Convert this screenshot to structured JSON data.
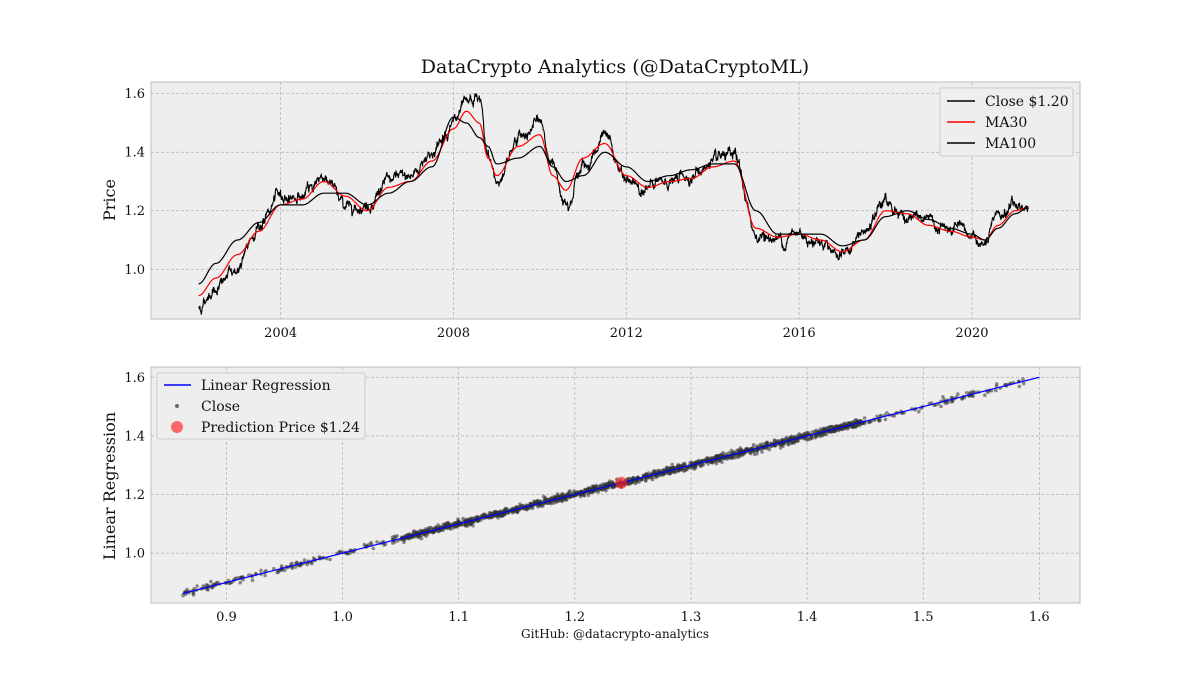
{
  "figure": {
    "title": "DataCrypto Analytics (@DataCryptoML)",
    "footer": "GitHub: @datacrypto-analytics"
  },
  "colors": {
    "panel_bg": "#eeeeee",
    "grid": "#b0b0b0",
    "close_line": "#000000",
    "ma30_line": "#ff0000",
    "ma100_line": "#000000",
    "regression_line": "#0000ff",
    "scatter": "#333333",
    "prediction": "#ff2020"
  },
  "chart_data": [
    {
      "id": "price",
      "type": "line",
      "title": "DataCrypto Analytics (@DataCryptoML)",
      "xlabel": "",
      "ylabel": "Price",
      "xlim": [
        2001.0,
        2022.5
      ],
      "ylim": [
        0.83,
        1.64
      ],
      "xticks": [
        2004,
        2008,
        2012,
        2016,
        2020
      ],
      "xtick_labels": [
        "2004",
        "2008",
        "2012",
        "2016",
        "2020"
      ],
      "yticks": [
        1.0,
        1.2,
        1.4,
        1.6
      ],
      "ytick_labels": [
        "1.0",
        "1.2",
        "1.4",
        "1.6"
      ],
      "grid": true,
      "legend": "top-right",
      "x": [
        2002.1,
        2002.5,
        2003.0,
        2003.5,
        2004.0,
        2004.5,
        2005.0,
        2005.5,
        2006.0,
        2006.5,
        2007.0,
        2007.5,
        2008.0,
        2008.3,
        2008.6,
        2008.8,
        2009.0,
        2009.5,
        2010.0,
        2010.3,
        2010.6,
        2011.0,
        2011.5,
        2012.0,
        2012.5,
        2013.0,
        2013.5,
        2014.0,
        2014.5,
        2015.0,
        2015.5,
        2016.0,
        2016.5,
        2017.0,
        2017.5,
        2018.0,
        2018.5,
        2019.0,
        2019.5,
        2020.0,
        2020.3,
        2020.6,
        2021.0,
        2021.3
      ],
      "series": [
        {
          "name": "Close $1.20",
          "color": "#000000",
          "values": [
            0.87,
            0.94,
            1.0,
            1.15,
            1.25,
            1.25,
            1.32,
            1.22,
            1.22,
            1.3,
            1.32,
            1.4,
            1.5,
            1.55,
            1.58,
            1.38,
            1.3,
            1.45,
            1.5,
            1.35,
            1.24,
            1.35,
            1.45,
            1.3,
            1.28,
            1.3,
            1.32,
            1.36,
            1.38,
            1.12,
            1.1,
            1.12,
            1.1,
            1.05,
            1.12,
            1.23,
            1.18,
            1.16,
            1.13,
            1.11,
            1.08,
            1.18,
            1.22,
            1.2
          ]
        },
        {
          "name": "MA30",
          "color": "#ff0000",
          "values": [
            0.91,
            0.97,
            1.05,
            1.13,
            1.22,
            1.24,
            1.3,
            1.25,
            1.2,
            1.28,
            1.3,
            1.37,
            1.48,
            1.54,
            1.5,
            1.38,
            1.32,
            1.42,
            1.46,
            1.32,
            1.27,
            1.38,
            1.43,
            1.32,
            1.28,
            1.3,
            1.31,
            1.35,
            1.37,
            1.14,
            1.11,
            1.12,
            1.1,
            1.06,
            1.1,
            1.2,
            1.19,
            1.15,
            1.13,
            1.11,
            1.1,
            1.15,
            1.2,
            1.21
          ]
        },
        {
          "name": "MA100",
          "color": "#000000",
          "values": [
            0.95,
            1.02,
            1.1,
            1.16,
            1.22,
            1.22,
            1.26,
            1.26,
            1.22,
            1.26,
            1.3,
            1.35,
            1.52,
            1.5,
            1.45,
            1.42,
            1.36,
            1.38,
            1.42,
            1.35,
            1.3,
            1.32,
            1.4,
            1.35,
            1.3,
            1.32,
            1.34,
            1.36,
            1.36,
            1.2,
            1.12,
            1.12,
            1.12,
            1.08,
            1.1,
            1.18,
            1.2,
            1.17,
            1.14,
            1.12,
            1.1,
            1.14,
            1.19,
            1.21
          ]
        }
      ]
    },
    {
      "id": "regression",
      "type": "scatter",
      "xlabel": "",
      "ylabel": "Linear Regression",
      "xlim": [
        0.835,
        1.635
      ],
      "ylim": [
        0.83,
        1.635
      ],
      "xticks": [
        0.9,
        1.0,
        1.1,
        1.2,
        1.3,
        1.4,
        1.5,
        1.6
      ],
      "xtick_labels": [
        "0.9",
        "1.0",
        "1.1",
        "1.2",
        "1.3",
        "1.4",
        "1.5",
        "1.6"
      ],
      "yticks": [
        1.0,
        1.2,
        1.4,
        1.6
      ],
      "ytick_labels": [
        "1.0",
        "1.2",
        "1.4",
        "1.6"
      ],
      "grid": true,
      "legend": "top-left",
      "regression": {
        "name": "Linear Regression",
        "color": "#0000ff",
        "x": [
          0.862,
          1.6
        ],
        "y": [
          0.862,
          1.6
        ]
      },
      "scatter": {
        "name": "Close",
        "color": "#333333",
        "x_range": [
          0.862,
          1.59
        ],
        "density": "dense 1.05-1.45"
      },
      "prediction": {
        "name": "Prediction Price $1.24",
        "color": "#ff2020",
        "x": 1.24,
        "y": 1.24
      }
    }
  ]
}
